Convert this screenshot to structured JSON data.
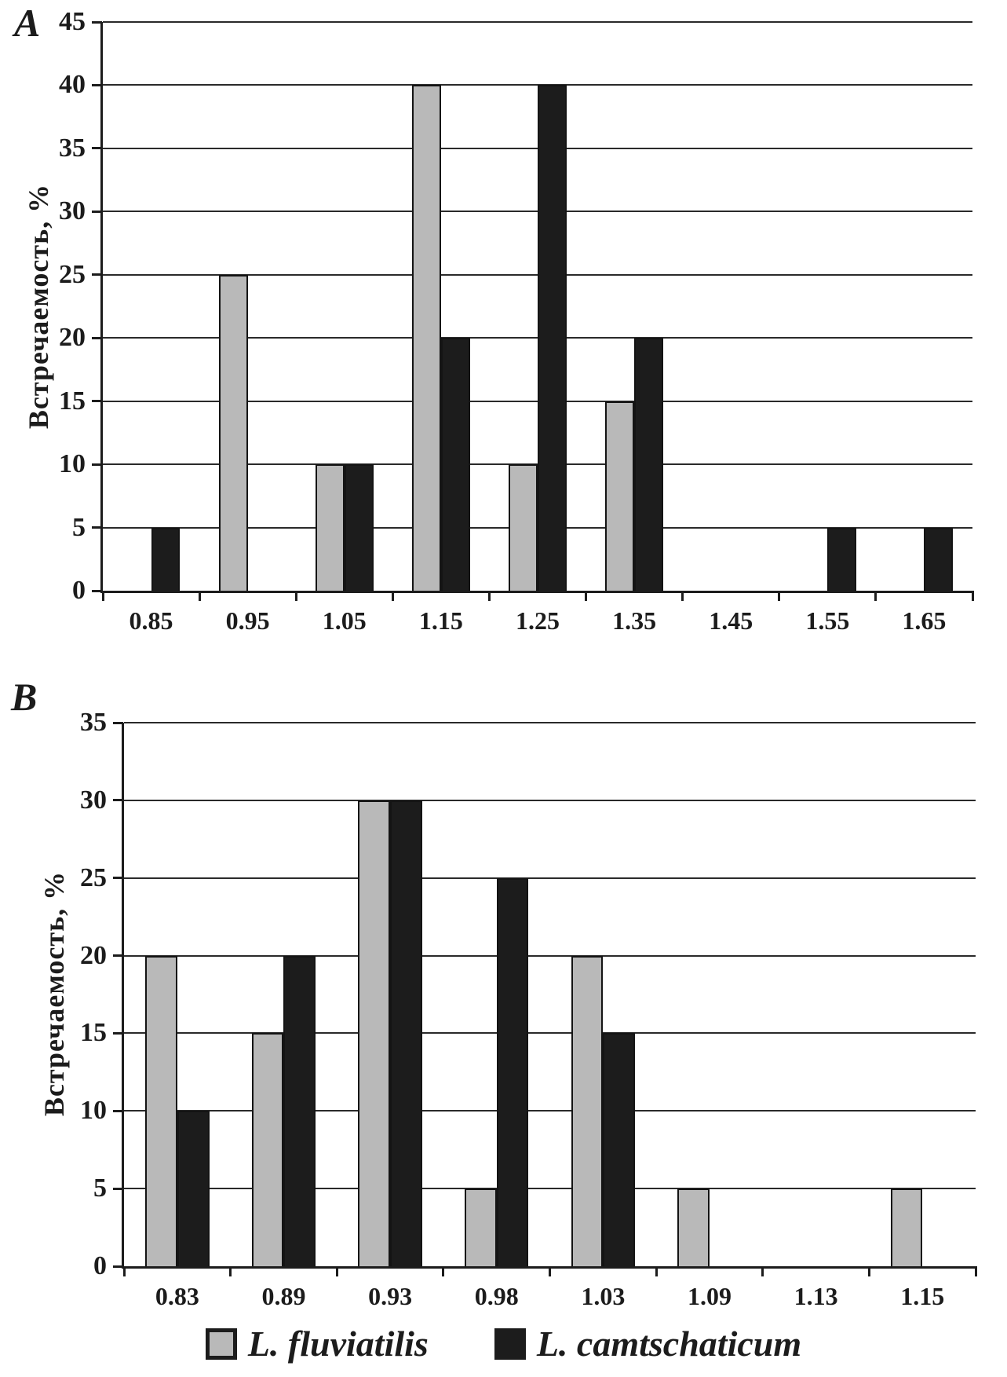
{
  "figure": {
    "panel_a_label": "A",
    "panel_b_label": "B"
  },
  "colors": {
    "series_gray": "#b9b9b9",
    "series_black": "#1c1c1c",
    "gridline": "#2a2a2a",
    "axis": "#1c1c1c",
    "background": "#ffffff"
  },
  "legend": {
    "position": "bottom-center",
    "items": [
      {
        "label": "L. fluviatilis",
        "color": "#b9b9b9",
        "swatch": "gray-square"
      },
      {
        "label": "L. camtschaticum",
        "color": "#1c1c1c",
        "swatch": "black-square"
      }
    ]
  },
  "chart_data": [
    {
      "type": "bar",
      "panel": "A",
      "title": "",
      "xlabel": "",
      "ylabel": "Встречаемость, %",
      "ylim": [
        0,
        45
      ],
      "ytick_step": 5,
      "grid": true,
      "legend_position": "bottom",
      "categories": [
        "0.85",
        "0.95",
        "1.05",
        "1.15",
        "1.25",
        "1.35",
        "1.45",
        "1.55",
        "1.65"
      ],
      "series": [
        {
          "name": "L. fluviatilis",
          "color": "#b9b9b9",
          "values": [
            0,
            25,
            10,
            40,
            10,
            15,
            0,
            0,
            0
          ]
        },
        {
          "name": "L. camtschaticum",
          "color": "#1c1c1c",
          "values": [
            5,
            0,
            10,
            20,
            40,
            20,
            0,
            5,
            5
          ]
        }
      ]
    },
    {
      "type": "bar",
      "panel": "B",
      "title": "",
      "xlabel": "",
      "ylabel": "Встречаемость, %",
      "ylim": [
        0,
        35
      ],
      "ytick_step": 5,
      "grid": true,
      "legend_position": "bottom",
      "categories": [
        "0.83",
        "0.89",
        "0.93",
        "0.98",
        "1.03",
        "1.09",
        "1.13",
        "1.15"
      ],
      "series": [
        {
          "name": "L. fluviatilis",
          "color": "#b9b9b9",
          "values": [
            20,
            15,
            30,
            5,
            20,
            5,
            0,
            5
          ]
        },
        {
          "name": "L. camtschaticum",
          "color": "#1c1c1c",
          "values": [
            10,
            20,
            30,
            25,
            15,
            0,
            0,
            0
          ]
        }
      ]
    }
  ]
}
